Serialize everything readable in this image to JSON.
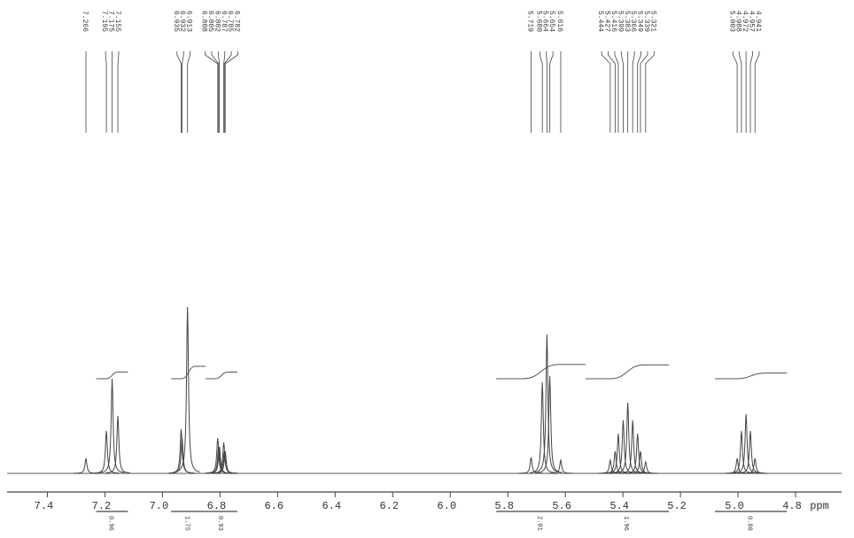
{
  "chart_data": {
    "type": "nmr",
    "x_label": "ppm",
    "xlim": [
      7.54,
      4.64
    ],
    "ylim": [
      0,
      200
    ],
    "xticks": [
      7.4,
      7.2,
      {
        "value": 7,
        "label": "7.0"
      },
      6.8,
      6.6,
      6.4,
      6.2,
      {
        "value": 6,
        "label": "6.0"
      },
      5.8,
      5.6,
      5.4,
      5.2,
      {
        "value": 5,
        "label": "5.0"
      },
      4.8
    ],
    "peaks": [
      {
        "value": 7.266,
        "label": "7.266",
        "intensity": 17
      },
      {
        "value": 7.195,
        "label": "7.195",
        "intensity": 48
      },
      {
        "value": 7.175,
        "label": "7.175",
        "intensity": 107
      },
      {
        "value": 7.155,
        "label": "7.155",
        "intensity": 65
      },
      {
        "value": 6.935,
        "label": "6.935",
        "intensity": 50
      },
      {
        "value": 6.932,
        "label": "6.932",
        "intensity": 40
      },
      {
        "value": 6.913,
        "label": "6.913",
        "intensity": 188
      },
      {
        "value": 6.808,
        "label": "6.808",
        "intensity": 40
      },
      {
        "value": 6.805,
        "label": "6.805",
        "intensity": 30
      },
      {
        "value": 6.802,
        "label": "6.802",
        "intensity": 30
      },
      {
        "value": 6.787,
        "label": "6.787",
        "intensity": 35
      },
      {
        "value": 6.785,
        "label": "6.785",
        "intensity": 25
      },
      {
        "value": 6.782,
        "label": "6.782",
        "intensity": 25
      },
      {
        "value": 5.719,
        "label": "5.719",
        "intensity": 18
      },
      {
        "value": 5.68,
        "label": "5.680",
        "intensity": 103
      },
      {
        "value": 5.664,
        "label": "5.664",
        "intensity": 157
      },
      {
        "value": 5.654,
        "label": "5.654",
        "intensity": 110
      },
      {
        "value": 5.616,
        "label": "5.616",
        "intensity": 15
      },
      {
        "value": 5.444,
        "label": "5.444",
        "intensity": 15
      },
      {
        "value": 5.427,
        "label": "5.427",
        "intensity": 25
      },
      {
        "value": 5.416,
        "label": "5.416",
        "intensity": 45
      },
      {
        "value": 5.399,
        "label": "5.399",
        "intensity": 60
      },
      {
        "value": 5.383,
        "label": "5.383",
        "intensity": 80
      },
      {
        "value": 5.366,
        "label": "5.366",
        "intensity": 60
      },
      {
        "value": 5.349,
        "label": "5.349",
        "intensity": 45
      },
      {
        "value": 5.339,
        "label": "5.339",
        "intensity": 25
      },
      {
        "value": 5.321,
        "label": "5.321",
        "intensity": 13
      },
      {
        "value": 5.003,
        "label": "5.003",
        "intensity": 17
      },
      {
        "value": 4.988,
        "label": "4.988",
        "intensity": 48
      },
      {
        "value": 4.972,
        "label": "4.972",
        "intensity": 67
      },
      {
        "value": 4.957,
        "label": "4.957",
        "intensity": 48
      },
      {
        "value": 4.941,
        "label": "4.941",
        "intensity": 17
      }
    ],
    "integrals": [
      {
        "range": [
          7.23,
          7.12
        ],
        "value": 0.96,
        "label": "0.96"
      },
      {
        "range": [
          6.97,
          6.85
        ],
        "value": 1.75,
        "label": "1.75"
      },
      {
        "range": [
          6.85,
          6.74
        ],
        "value": 0.93,
        "label": "0.93"
      },
      {
        "range": [
          5.84,
          5.53
        ],
        "value": 2.01,
        "label": "2.01"
      },
      {
        "range": [
          5.53,
          5.24
        ],
        "value": 1.96,
        "label": "1.96"
      },
      {
        "range": [
          5.08,
          4.83
        ],
        "value": 0.8,
        "label": "0.80"
      }
    ]
  }
}
